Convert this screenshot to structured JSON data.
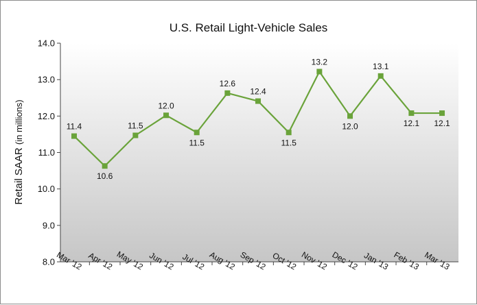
{
  "chart_data": {
    "type": "line",
    "title": "U.S. Retail Light-Vehicle Sales",
    "ylabel_main": "Retail SAAR",
    "ylabel_unit": "(in millions)",
    "xlabel": "",
    "categories": [
      "Mar '12",
      "Apr '12",
      "May '12",
      "Jun '12",
      "Jul '12",
      "Aug '12",
      "Sep '12",
      "Oct '12",
      "Nov '12",
      "Dec '12",
      "Jan '13",
      "Feb '13",
      "Mar '13"
    ],
    "series": [
      {
        "values": [
          11.45,
          10.63,
          11.47,
          12.02,
          11.55,
          12.63,
          12.41,
          11.55,
          13.22,
          12.0,
          13.1,
          12.08,
          12.08
        ],
        "labels": [
          "11.4",
          "10.6",
          "11.5",
          "12.0",
          "11.5",
          "12.6",
          "12.4",
          "11.5",
          "13.2",
          "12.0",
          "13.1",
          "12.1",
          "12.1"
        ],
        "color": "#6aa33a"
      }
    ],
    "yticks": [
      "8.0",
      "9.0",
      "10.0",
      "11.0",
      "12.0",
      "13.0",
      "14.0"
    ],
    "ylim": [
      8.0,
      14.0
    ],
    "grid": false,
    "legend": "none",
    "background_gradient": [
      "#ffffff",
      "#c6c6c6"
    ]
  }
}
